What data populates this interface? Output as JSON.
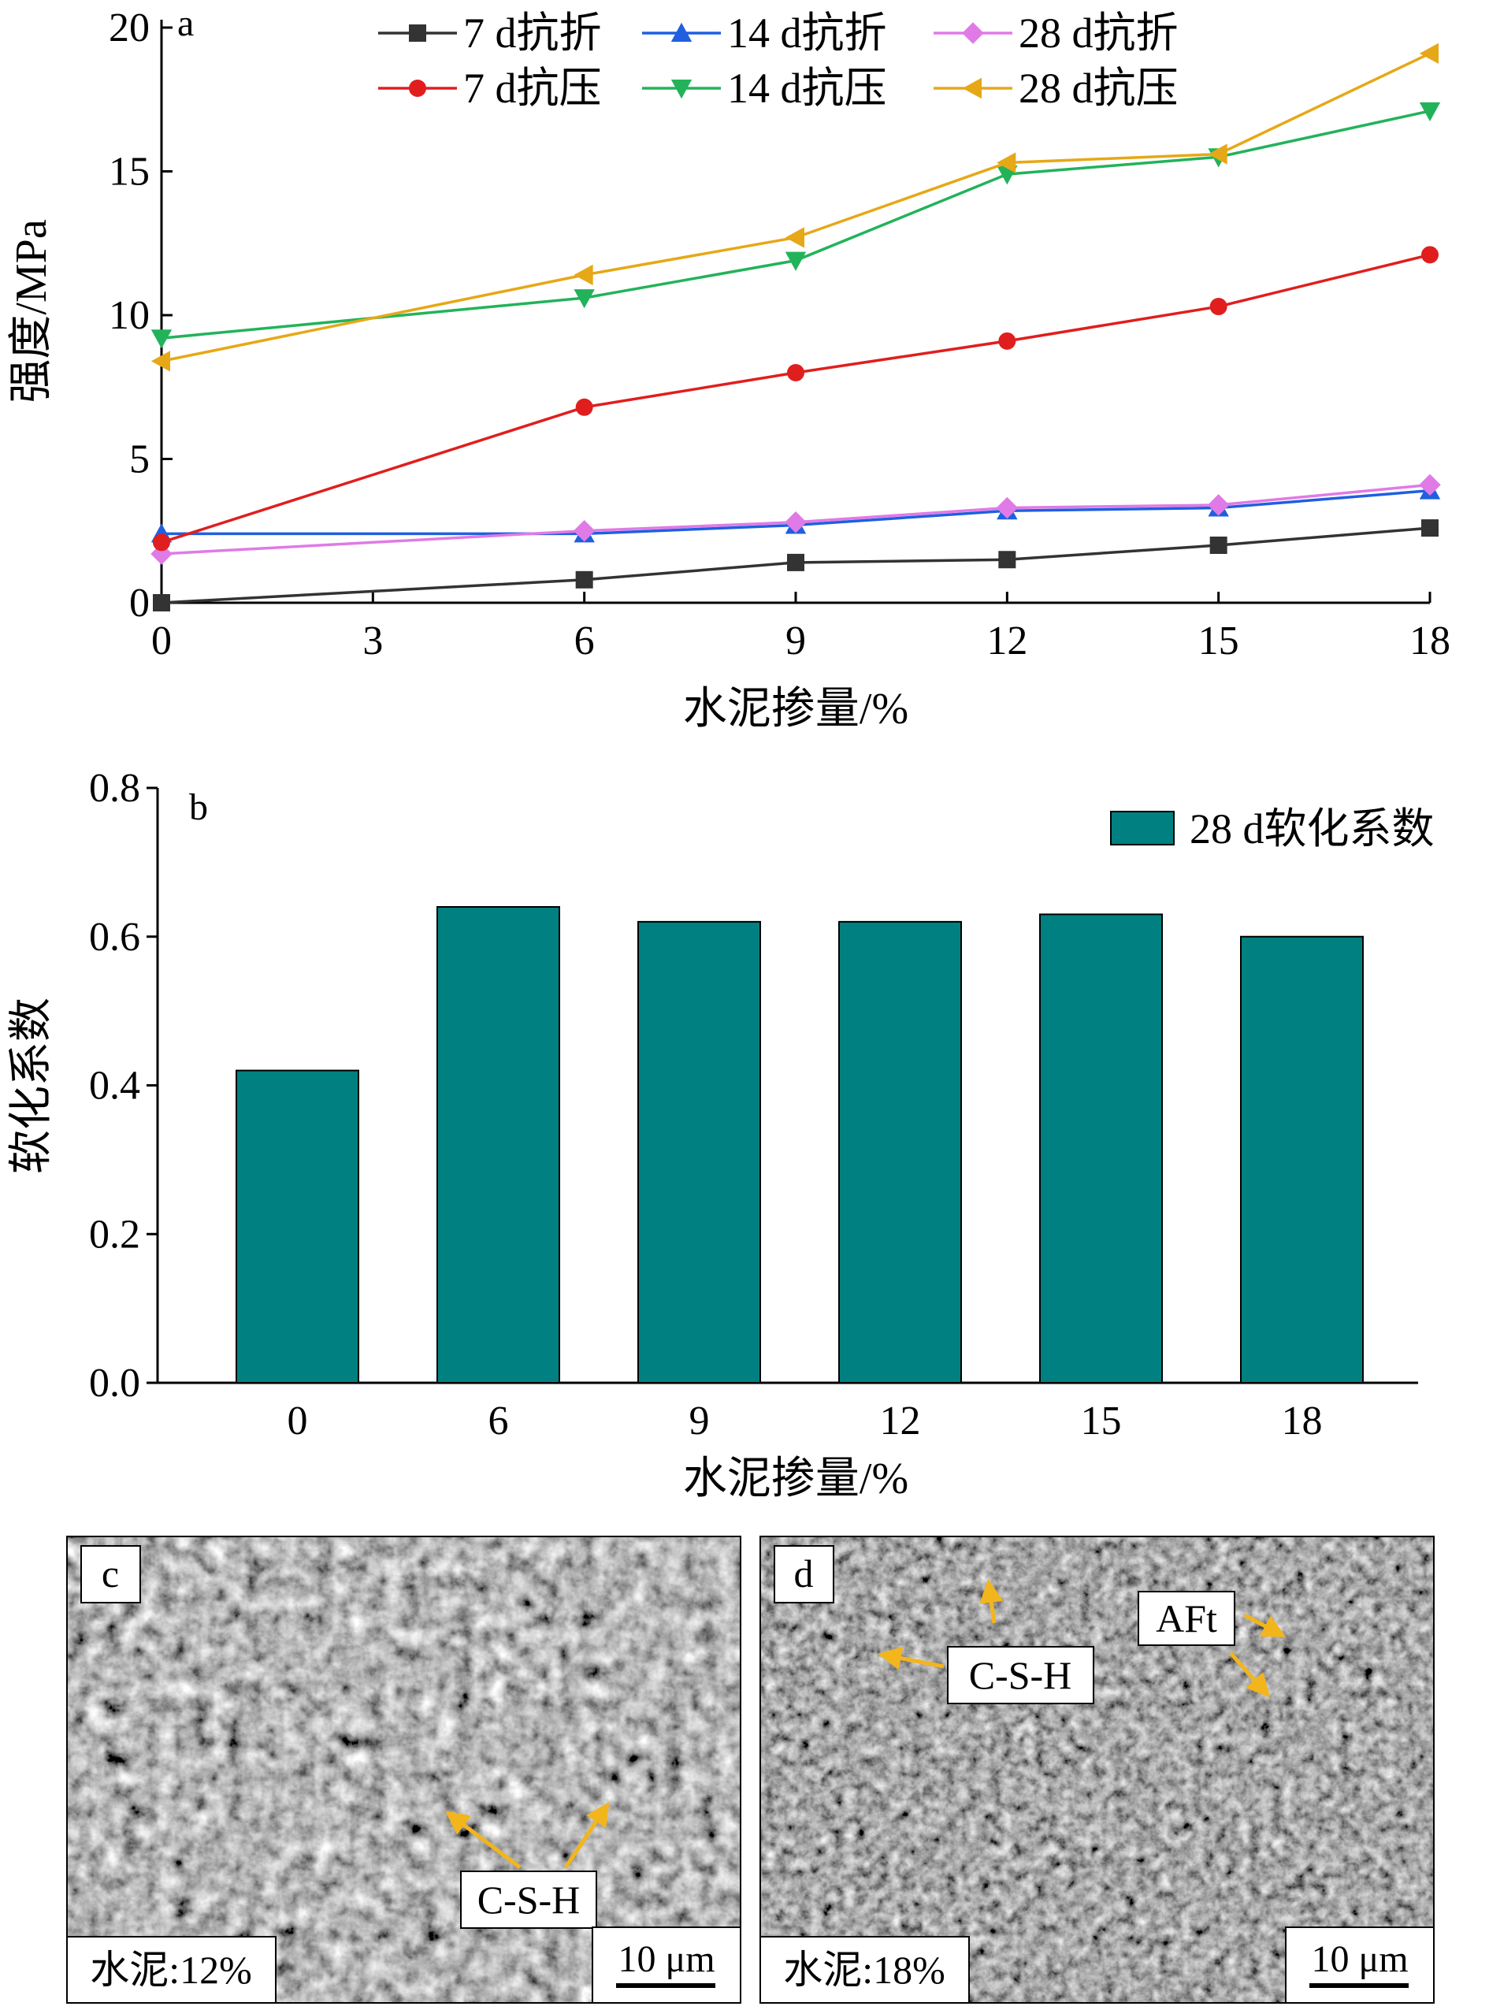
{
  "chart_data": [
    {
      "panel": "a",
      "type": "line",
      "xlabel": "水泥掺量/%",
      "ylabel": "强度/MPa",
      "xlim": [
        0,
        18
      ],
      "ylim": [
        0,
        20
      ],
      "xticks": [
        "0",
        "3",
        "6",
        "9",
        "12",
        "15",
        "18"
      ],
      "yticks": [
        "0",
        "5",
        "10",
        "15",
        "20"
      ],
      "legend_position": "top",
      "x": [
        0,
        6,
        9,
        12,
        15,
        18
      ],
      "series": [
        {
          "name": "7 d抗折",
          "color": "#333333",
          "marker": "square",
          "values": [
            0.0,
            0.8,
            1.4,
            1.5,
            2.0,
            2.6
          ]
        },
        {
          "name": "14 d抗折",
          "color": "#1f5fe0",
          "marker": "triangle-up",
          "values": [
            2.4,
            2.4,
            2.7,
            3.2,
            3.3,
            3.9
          ]
        },
        {
          "name": "28 d抗折",
          "color": "#e07ae6",
          "marker": "diamond",
          "values": [
            1.7,
            2.5,
            2.8,
            3.3,
            3.4,
            4.1
          ]
        },
        {
          "name": "7 d抗压",
          "color": "#e01e1e",
          "marker": "circle",
          "values": [
            2.1,
            6.8,
            8.0,
            9.1,
            10.3,
            12.1
          ]
        },
        {
          "name": "14 d抗压",
          "color": "#22b35a",
          "marker": "triangle-down",
          "values": [
            9.2,
            10.6,
            11.9,
            14.9,
            15.5,
            17.1
          ]
        },
        {
          "name": "28 d抗压",
          "color": "#e6a817",
          "marker": "triangle-left",
          "values": [
            8.4,
            11.4,
            12.7,
            15.3,
            15.6,
            19.1
          ]
        }
      ]
    },
    {
      "panel": "b",
      "type": "bar",
      "xlabel": "水泥掺量/%",
      "ylabel": "软化系数",
      "ylim": [
        0,
        0.8
      ],
      "yticks": [
        "0.0",
        "0.2",
        "0.4",
        "0.6",
        "0.8"
      ],
      "categories": [
        "0",
        "6",
        "9",
        "12",
        "15",
        "18"
      ],
      "series": [
        {
          "name": "28 d软化系数",
          "color": "#008080",
          "values": [
            0.42,
            0.64,
            0.62,
            0.62,
            0.63,
            0.6
          ]
        }
      ],
      "legend_position": "top-right"
    }
  ],
  "panels": {
    "a": {
      "label": "a"
    },
    "b": {
      "label": "b"
    },
    "c": {
      "label": "c",
      "caption": "水泥:12%",
      "annotations": [
        "C-S-H"
      ],
      "scalebar": "10 μm"
    },
    "d": {
      "label": "d",
      "caption": "水泥:18%",
      "annotations": [
        "C-S-H",
        "AFt"
      ],
      "scalebar": "10 μm"
    }
  }
}
